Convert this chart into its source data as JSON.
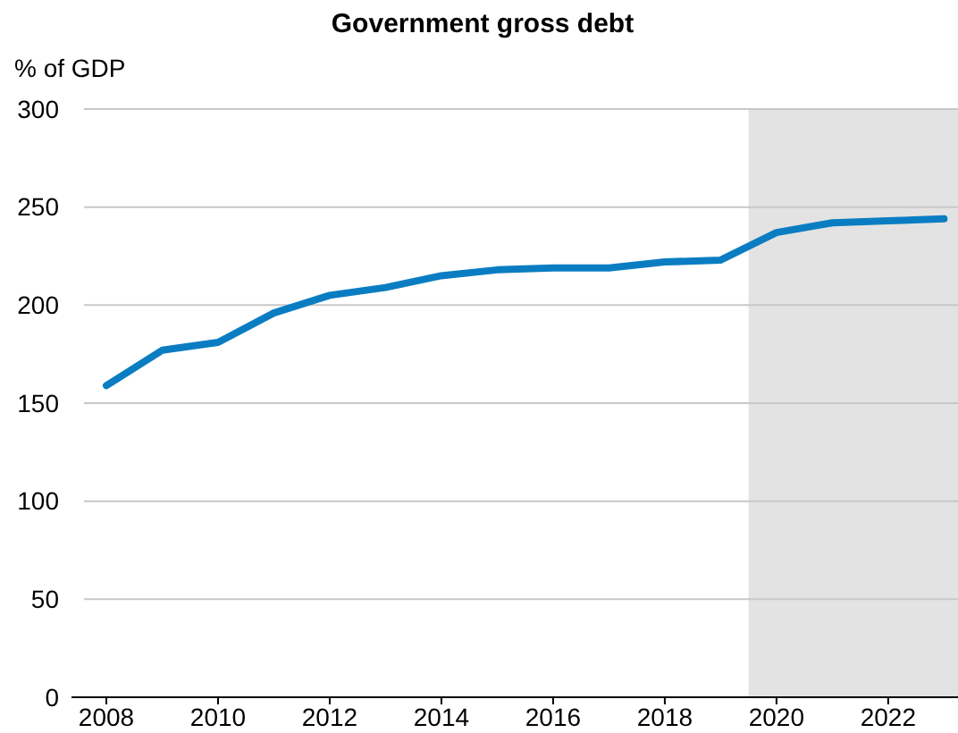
{
  "chart_data": {
    "type": "line",
    "title": "Government gross debt",
    "ylabel": "% of GDP",
    "x": [
      2008,
      2009,
      2010,
      2011,
      2012,
      2013,
      2014,
      2015,
      2016,
      2017,
      2018,
      2019,
      2020,
      2021,
      2022,
      2023
    ],
    "series": [
      {
        "color": "#0a7dc2",
        "values": [
          159,
          177,
          181,
          196,
          205,
          209,
          215,
          218,
          219,
          219,
          222,
          223,
          237,
          242,
          243,
          244
        ]
      }
    ],
    "xlim": [
      2007.6,
      2023.25
    ],
    "xticks": [
      2008,
      2010,
      2012,
      2014,
      2016,
      2018,
      2020,
      2022
    ],
    "ylim": [
      0,
      300
    ],
    "yticks": [
      0,
      50,
      100,
      150,
      200,
      250,
      300
    ],
    "grid": "y",
    "bands": [
      {
        "axis": "x",
        "from": 2019.5,
        "to": 2023.25,
        "color": "#e3e3e3"
      }
    ],
    "marker": "none",
    "line_style": "solid"
  }
}
